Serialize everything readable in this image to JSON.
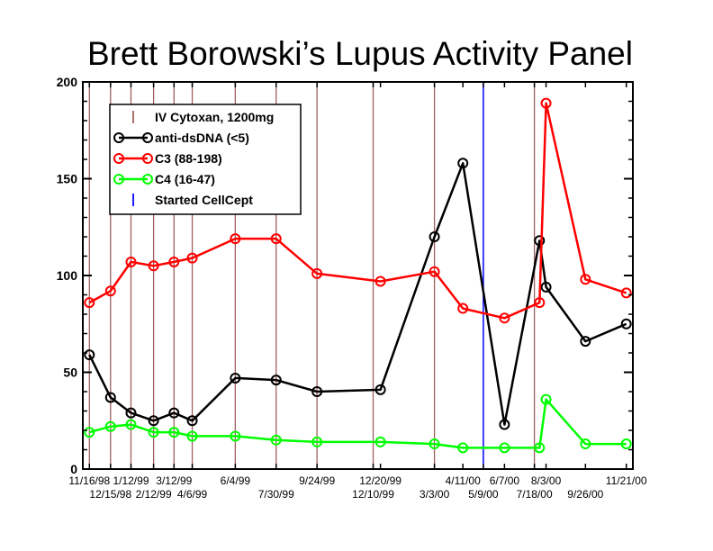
{
  "chart_data": {
    "type": "line",
    "title": "Brett Borowski’s Lupus Activity Panel",
    "xlabel": "",
    "ylabel": "",
    "ylim": [
      0,
      200
    ],
    "yticks": [
      0,
      50,
      100,
      150,
      200
    ],
    "x_tick_labels": [
      {
        "label": "11/16/98",
        "date": "1998-11-16",
        "row": 1
      },
      {
        "label": "12/15/98",
        "date": "1998-12-15",
        "row": 2
      },
      {
        "label": "1/12/99",
        "date": "1999-01-12",
        "row": 1
      },
      {
        "label": "2/12/99",
        "date": "1999-02-12",
        "row": 2
      },
      {
        "label": "3/12/99",
        "date": "1999-03-12",
        "row": 1
      },
      {
        "label": "4/6/99",
        "date": "1999-04-06",
        "row": 2
      },
      {
        "label": "6/4/99",
        "date": "1999-06-04",
        "row": 1
      },
      {
        "label": "7/30/99",
        "date": "1999-07-30",
        "row": 2
      },
      {
        "label": "9/24/99",
        "date": "1999-09-24",
        "row": 1
      },
      {
        "label": "12/10/99",
        "date": "1999-12-10",
        "row": 2
      },
      {
        "label": "12/20/99",
        "date": "1999-12-20",
        "row": 1
      },
      {
        "label": "3/3/00",
        "date": "2000-03-03",
        "row": 2
      },
      {
        "label": "4/11/00",
        "date": "2000-04-11",
        "row": 1
      },
      {
        "label": "5/9/00",
        "date": "2000-05-09",
        "row": 2
      },
      {
        "label": "6/7/00",
        "date": "2000-06-07",
        "row": 1
      },
      {
        "label": "7/18/00",
        "date": "2000-07-18",
        "row": 2
      },
      {
        "label": "8/3/00",
        "date": "2000-08-03",
        "row": 1
      },
      {
        "label": "9/26/00",
        "date": "2000-09-26",
        "row": 2
      },
      {
        "label": "11/21/00",
        "date": "2000-11-21",
        "row": 1
      }
    ],
    "x_range": [
      "1998-11-07",
      "2000-11-30"
    ],
    "cytoxan_dates": [
      "1998-11-16",
      "1998-12-15",
      "1999-01-12",
      "1999-02-12",
      "1999-03-12",
      "1999-04-06",
      "1999-06-04",
      "1999-07-30",
      "1999-09-24",
      "1999-12-10",
      "2000-03-03",
      "2000-07-18"
    ],
    "cellcept_date": "2000-05-09",
    "series": [
      {
        "name": "anti-dsDNA (<5)",
        "color": "#000000",
        "points": [
          {
            "date": "1998-11-16",
            "value": 59
          },
          {
            "date": "1998-12-15",
            "value": 37
          },
          {
            "date": "1999-01-12",
            "value": 29
          },
          {
            "date": "1999-02-12",
            "value": 25
          },
          {
            "date": "1999-03-12",
            "value": 29
          },
          {
            "date": "1999-04-06",
            "value": 25
          },
          {
            "date": "1999-06-04",
            "value": 47
          },
          {
            "date": "1999-07-30",
            "value": 46
          },
          {
            "date": "1999-09-24",
            "value": 40
          },
          {
            "date": "1999-12-20",
            "value": 41
          },
          {
            "date": "2000-03-03",
            "value": 120
          },
          {
            "date": "2000-04-11",
            "value": 158
          },
          {
            "date": "2000-06-07",
            "value": 23
          },
          {
            "date": "2000-07-25",
            "value": 118
          },
          {
            "date": "2000-08-03",
            "value": 94
          },
          {
            "date": "2000-09-26",
            "value": 66
          },
          {
            "date": "2000-11-21",
            "value": 75
          }
        ]
      },
      {
        "name": "C3 (88-198)",
        "color": "#ff0000",
        "points": [
          {
            "date": "1998-11-16",
            "value": 86
          },
          {
            "date": "1998-12-15",
            "value": 92
          },
          {
            "date": "1999-01-12",
            "value": 107
          },
          {
            "date": "1999-02-12",
            "value": 105
          },
          {
            "date": "1999-03-12",
            "value": 107
          },
          {
            "date": "1999-04-06",
            "value": 109
          },
          {
            "date": "1999-06-04",
            "value": 119
          },
          {
            "date": "1999-07-30",
            "value": 119
          },
          {
            "date": "1999-09-24",
            "value": 101
          },
          {
            "date": "1999-12-20",
            "value": 97
          },
          {
            "date": "2000-03-03",
            "value": 102
          },
          {
            "date": "2000-04-11",
            "value": 83
          },
          {
            "date": "2000-06-07",
            "value": 78
          },
          {
            "date": "2000-07-25",
            "value": 86
          },
          {
            "date": "2000-08-03",
            "value": 189
          },
          {
            "date": "2000-09-26",
            "value": 98
          },
          {
            "date": "2000-11-21",
            "value": 91
          }
        ]
      },
      {
        "name": "C4 (16-47)",
        "color": "#00ff00",
        "points": [
          {
            "date": "1998-11-16",
            "value": 19
          },
          {
            "date": "1998-12-15",
            "value": 22
          },
          {
            "date": "1999-01-12",
            "value": 23
          },
          {
            "date": "1999-02-12",
            "value": 19
          },
          {
            "date": "1999-03-12",
            "value": 19
          },
          {
            "date": "1999-04-06",
            "value": 17
          },
          {
            "date": "1999-06-04",
            "value": 17
          },
          {
            "date": "1999-07-30",
            "value": 15
          },
          {
            "date": "1999-09-24",
            "value": 14
          },
          {
            "date": "1999-12-20",
            "value": 14
          },
          {
            "date": "2000-03-03",
            "value": 13
          },
          {
            "date": "2000-04-11",
            "value": 11
          },
          {
            "date": "2000-06-07",
            "value": 11
          },
          {
            "date": "2000-07-25",
            "value": 11
          },
          {
            "date": "2000-08-03",
            "value": 36
          },
          {
            "date": "2000-09-26",
            "value": 13
          },
          {
            "date": "2000-11-21",
            "value": 13
          }
        ]
      }
    ],
    "legend": {
      "placement": "top-left",
      "entries": [
        {
          "label": "IV Cytoxan, 1200mg",
          "kind": "cytoxan",
          "color": "#a06060"
        },
        {
          "label": "anti-dsDNA (<5)",
          "kind": "line",
          "color": "#000000"
        },
        {
          "label": "C3 (88-198)",
          "kind": "line",
          "color": "#ff0000"
        },
        {
          "label": "C4 (16-47)",
          "kind": "line",
          "color": "#00ff00"
        },
        {
          "label": "Started CellCept",
          "kind": "cellcept",
          "color": "#0000ff"
        }
      ]
    },
    "colors": {
      "cytoxan": "#a06060",
      "cellcept": "#0000ff",
      "axis": "#000000"
    }
  }
}
